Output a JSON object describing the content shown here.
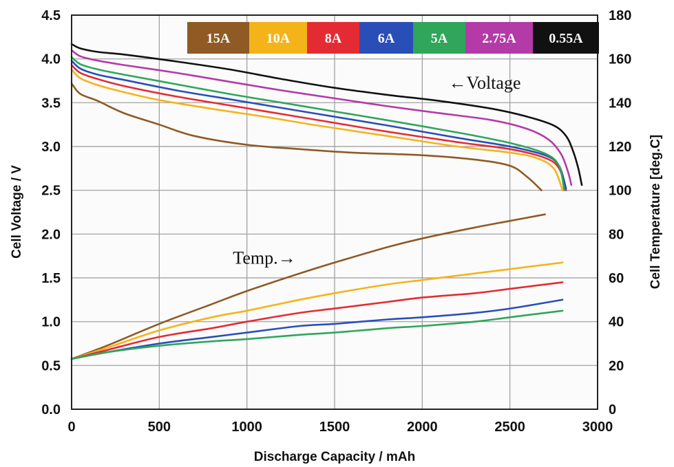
{
  "chart_data": {
    "type": "line",
    "xlabel": "Discharge Capacity / mAh",
    "ylabel": "Cell Voltage / V",
    "y2label": "Cell Temperature [deg.C]",
    "xlim": [
      0,
      3000
    ],
    "ylim": [
      0.0,
      4.5
    ],
    "y2lim": [
      0,
      180
    ],
    "x_ticks": [
      "0",
      "500",
      "1000",
      "1500",
      "2000",
      "2500",
      "3000"
    ],
    "y_ticks": [
      "0.0",
      "0.5",
      "1.0",
      "1.5",
      "2.0",
      "2.5",
      "3.0",
      "3.5",
      "4.0",
      "4.5"
    ],
    "y2_ticks": [
      "0",
      "20",
      "40",
      "60",
      "80",
      "100",
      "120",
      "140",
      "160",
      "180"
    ],
    "grid": true,
    "legend_position": "top-right",
    "annotations": [
      {
        "text": "←Voltage",
        "x": 2150,
        "y": 3.73
      },
      {
        "text": "Temp.→",
        "x": 920,
        "y": 1.73
      }
    ],
    "series": [
      {
        "name": "15A",
        "color": "#8f5a24",
        "voltage": {
          "x": [
            0,
            50,
            150,
            300,
            500,
            700,
            1000,
            1300,
            1600,
            2000,
            2300,
            2500,
            2600,
            2680
          ],
          "y": [
            3.72,
            3.6,
            3.52,
            3.38,
            3.25,
            3.12,
            3.02,
            2.97,
            2.93,
            2.9,
            2.85,
            2.78,
            2.65,
            2.5
          ]
        },
        "temperature": {
          "x": [
            0,
            200,
            500,
            800,
            1000,
            1300,
            1500,
            1800,
            2000,
            2300,
            2500,
            2700
          ],
          "y": [
            23,
            29,
            39,
            48,
            54,
            62,
            67,
            74,
            78,
            83,
            86,
            89
          ]
        }
      },
      {
        "name": "10A",
        "color": "#f5b31a",
        "voltage": {
          "x": [
            0,
            50,
            150,
            300,
            500,
            800,
            1100,
            1400,
            1800,
            2200,
            2500,
            2650,
            2750,
            2800
          ],
          "y": [
            3.88,
            3.78,
            3.7,
            3.62,
            3.53,
            3.43,
            3.34,
            3.24,
            3.12,
            3.0,
            2.93,
            2.87,
            2.75,
            2.5
          ]
        },
        "temperature": {
          "x": [
            0,
            200,
            500,
            800,
            1000,
            1300,
            1500,
            1800,
            2000,
            2300,
            2500,
            2800
          ],
          "y": [
            23,
            28,
            36,
            42,
            45,
            50,
            53,
            57,
            59,
            62,
            64,
            67
          ]
        }
      },
      {
        "name": "8A",
        "color": "#e42b33",
        "voltage": {
          "x": [
            0,
            50,
            150,
            300,
            600,
            900,
            1200,
            1500,
            1800,
            2200,
            2500,
            2700,
            2780,
            2820
          ],
          "y": [
            3.93,
            3.84,
            3.77,
            3.69,
            3.57,
            3.47,
            3.37,
            3.27,
            3.17,
            3.05,
            2.97,
            2.87,
            2.75,
            2.5
          ]
        },
        "temperature": {
          "x": [
            0,
            200,
            500,
            800,
            1000,
            1300,
            1500,
            1800,
            2000,
            2300,
            2500,
            2800
          ],
          "y": [
            23,
            27,
            33,
            37,
            40,
            44,
            46,
            49,
            51,
            53,
            55,
            58
          ]
        }
      },
      {
        "name": "6A",
        "color": "#2a4eb8",
        "voltage": {
          "x": [
            0,
            50,
            150,
            300,
            600,
            900,
            1200,
            1500,
            1800,
            2200,
            2500,
            2700,
            2780,
            2820
          ],
          "y": [
            3.98,
            3.89,
            3.82,
            3.76,
            3.64,
            3.54,
            3.44,
            3.34,
            3.24,
            3.1,
            3.0,
            2.9,
            2.78,
            2.52
          ]
        },
        "temperature": {
          "x": [
            0,
            200,
            500,
            800,
            1000,
            1300,
            1500,
            1800,
            2000,
            2300,
            2500,
            2800
          ],
          "y": [
            23,
            26,
            30,
            33,
            35,
            38,
            39,
            41,
            42,
            44,
            46,
            50
          ]
        }
      },
      {
        "name": "5A",
        "color": "#2fa65a",
        "voltage": {
          "x": [
            0,
            50,
            150,
            300,
            600,
            900,
            1200,
            1500,
            1800,
            2200,
            2500,
            2700,
            2780,
            2810
          ],
          "y": [
            4.02,
            3.94,
            3.88,
            3.82,
            3.71,
            3.6,
            3.5,
            3.4,
            3.3,
            3.16,
            3.04,
            2.92,
            2.78,
            2.5
          ]
        },
        "temperature": {
          "x": [
            0,
            200,
            500,
            800,
            1000,
            1300,
            1500,
            1800,
            2000,
            2300,
            2500,
            2800
          ],
          "y": [
            23,
            26,
            29,
            31,
            32,
            34,
            35,
            37,
            38,
            40,
            42,
            45
          ]
        }
      },
      {
        "name": "2.75A",
        "color": "#b43aa8",
        "voltage": {
          "x": [
            0,
            50,
            150,
            300,
            600,
            900,
            1200,
            1500,
            1800,
            2100,
            2400,
            2600,
            2720,
            2790,
            2830,
            2850
          ],
          "y": [
            4.1,
            4.03,
            3.98,
            3.93,
            3.84,
            3.74,
            3.64,
            3.55,
            3.46,
            3.38,
            3.3,
            3.2,
            3.08,
            2.92,
            2.72,
            2.56
          ]
        },
        "temperature": null
      },
      {
        "name": "0.55A",
        "color": "#111111",
        "voltage": {
          "x": [
            0,
            50,
            150,
            300,
            600,
            900,
            1200,
            1500,
            1800,
            2100,
            2400,
            2600,
            2750,
            2820,
            2860,
            2890,
            2910
          ],
          "y": [
            4.17,
            4.12,
            4.08,
            4.05,
            3.97,
            3.88,
            3.77,
            3.67,
            3.59,
            3.52,
            3.43,
            3.34,
            3.24,
            3.12,
            2.95,
            2.75,
            2.56
          ]
        },
        "temperature": null
      }
    ]
  }
}
